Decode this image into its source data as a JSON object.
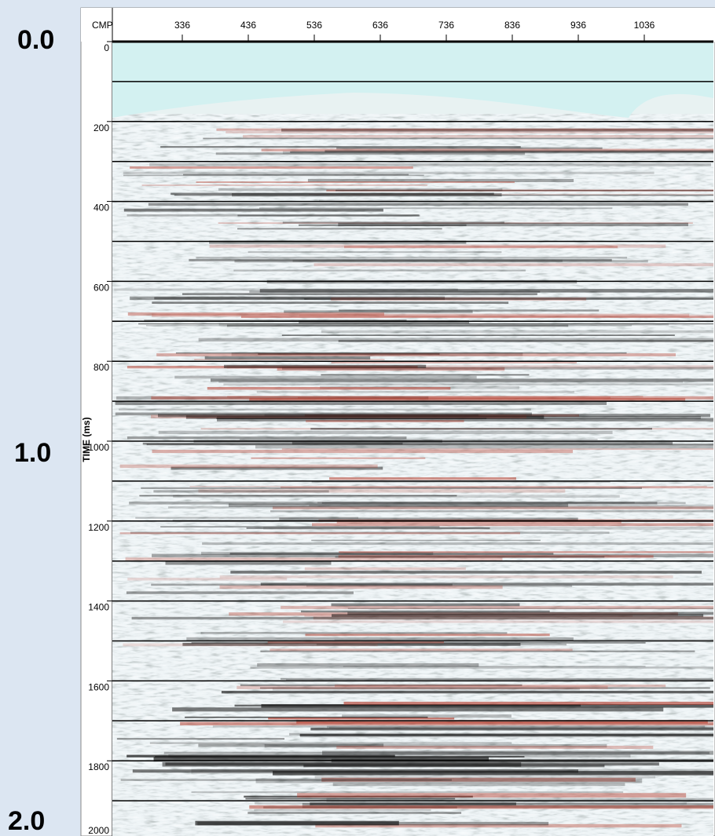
{
  "side_labels": {
    "top": "0.0",
    "middle": "1.0",
    "bottom": "2.0"
  },
  "x_axis": {
    "label": "CMP",
    "ticks": [
      "336",
      "436",
      "536",
      "636",
      "736",
      "836",
      "936",
      "1036"
    ]
  },
  "y_axis": {
    "label": "TIME (ms)",
    "ticks": [
      "0",
      "200",
      "400",
      "600",
      "800",
      "1000",
      "1200",
      "1400",
      "1600",
      "1800",
      "2000"
    ]
  }
}
